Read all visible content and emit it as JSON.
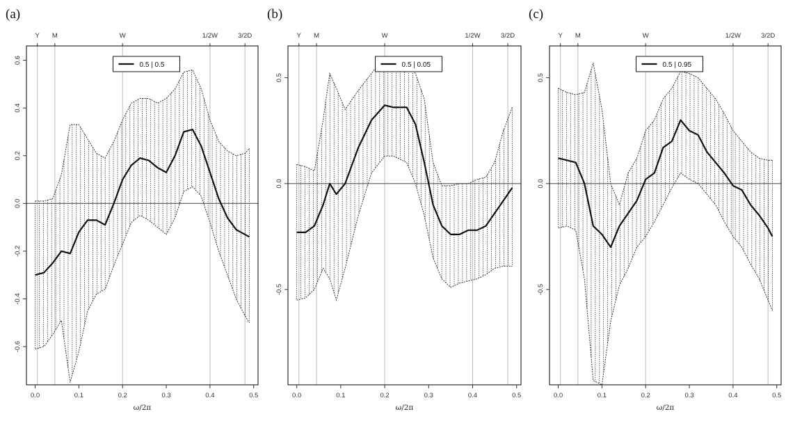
{
  "panels": [
    {
      "label": "(a)",
      "legend": "0.5 | 0.5"
    },
    {
      "label": "(b)",
      "legend": "0.5 | 0.05"
    },
    {
      "label": "(c)",
      "legend": "0.5 | 0.95"
    }
  ],
  "colors": {
    "line": "#111111",
    "band": "#333333",
    "marker": "#bbbbbb",
    "frame": "#000000"
  },
  "chart_data": [
    {
      "type": "line",
      "title": "(a)",
      "xlabel": "ω/2π",
      "ylabel": "",
      "xlim": [
        -0.02,
        0.51
      ],
      "ylim": [
        -0.76,
        0.66
      ],
      "xticks": [
        0.0,
        0.1,
        0.2,
        0.3,
        0.4,
        0.5
      ],
      "yticks": [
        -0.6,
        -0.4,
        -0.2,
        0.0,
        0.2,
        0.4,
        0.6
      ],
      "ytick_labels": [
        "-0.6",
        "-0.4",
        "-0.2",
        "0.0",
        "0.2",
        "0.4",
        "0.6"
      ],
      "top_markers": [
        {
          "label": "Y",
          "x": 0.005
        },
        {
          "label": "M",
          "x": 0.045
        },
        {
          "label": "W",
          "x": 0.2
        },
        {
          "label": "1/2W",
          "x": 0.4
        },
        {
          "label": "3/2D",
          "x": 0.48
        }
      ],
      "hline": 0,
      "legend": {
        "entries": [
          "0.5 | 0.5"
        ],
        "position": "top-center"
      },
      "x": [
        0.0,
        0.02,
        0.04,
        0.06,
        0.08,
        0.1,
        0.12,
        0.14,
        0.16,
        0.18,
        0.2,
        0.22,
        0.24,
        0.26,
        0.28,
        0.3,
        0.32,
        0.34,
        0.36,
        0.38,
        0.4,
        0.42,
        0.44,
        0.46,
        0.48,
        0.49
      ],
      "series": [
        {
          "name": "0.5 | 0.5",
          "values": [
            -0.3,
            -0.29,
            -0.25,
            -0.2,
            -0.21,
            -0.12,
            -0.07,
            -0.07,
            -0.09,
            0.0,
            0.1,
            0.16,
            0.19,
            0.18,
            0.15,
            0.13,
            0.2,
            0.3,
            0.31,
            0.24,
            0.13,
            0.02,
            -0.06,
            -0.11,
            -0.13,
            -0.14
          ]
        }
      ],
      "band_upper": [
        0.01,
        0.01,
        0.02,
        0.12,
        0.33,
        0.33,
        0.27,
        0.21,
        0.19,
        0.26,
        0.35,
        0.42,
        0.44,
        0.44,
        0.42,
        0.44,
        0.48,
        0.55,
        0.56,
        0.48,
        0.35,
        0.26,
        0.22,
        0.2,
        0.21,
        0.23
      ],
      "band_lower": [
        -0.61,
        -0.6,
        -0.55,
        -0.49,
        -0.75,
        -0.62,
        -0.45,
        -0.38,
        -0.36,
        -0.26,
        -0.17,
        -0.08,
        -0.05,
        -0.07,
        -0.1,
        -0.13,
        -0.06,
        0.05,
        0.07,
        0.03,
        -0.08,
        -0.2,
        -0.3,
        -0.4,
        -0.47,
        -0.5
      ]
    },
    {
      "type": "line",
      "title": "(b)",
      "xlabel": "ω/2π",
      "ylabel": "",
      "xlim": [
        -0.02,
        0.51
      ],
      "ylim": [
        -0.95,
        0.65
      ],
      "xticks": [
        0.0,
        0.1,
        0.2,
        0.3,
        0.4,
        0.5
      ],
      "yticks": [
        -0.5,
        0.0,
        0.5
      ],
      "ytick_labels": [
        "-0.5",
        "0.0",
        "0.5"
      ],
      "top_markers": [
        {
          "label": "Y",
          "x": 0.005
        },
        {
          "label": "M",
          "x": 0.045
        },
        {
          "label": "W",
          "x": 0.2
        },
        {
          "label": "1/2W",
          "x": 0.4
        },
        {
          "label": "3/2D",
          "x": 0.48
        }
      ],
      "hline": 0,
      "legend": {
        "entries": [
          "0.5 | 0.05"
        ],
        "position": "top-center"
      },
      "x": [
        0.0,
        0.02,
        0.04,
        0.06,
        0.075,
        0.09,
        0.11,
        0.14,
        0.17,
        0.2,
        0.22,
        0.25,
        0.27,
        0.29,
        0.31,
        0.33,
        0.35,
        0.37,
        0.39,
        0.41,
        0.43,
        0.45,
        0.47,
        0.49
      ],
      "series": [
        {
          "name": "0.5 | 0.05",
          "values": [
            -0.23,
            -0.23,
            -0.2,
            -0.1,
            0.0,
            -0.05,
            0.0,
            0.17,
            0.3,
            0.37,
            0.36,
            0.36,
            0.28,
            0.1,
            -0.1,
            -0.2,
            -0.24,
            -0.24,
            -0.22,
            -0.22,
            -0.2,
            -0.14,
            -0.08,
            -0.02
          ]
        }
      ],
      "band_upper": [
        0.09,
        0.08,
        0.06,
        0.3,
        0.52,
        0.45,
        0.35,
        0.44,
        0.52,
        0.6,
        0.6,
        0.56,
        0.52,
        0.4,
        0.1,
        -0.01,
        -0.01,
        0.0,
        0.0,
        0.02,
        0.03,
        0.1,
        0.25,
        0.36
      ],
      "band_lower": [
        -0.55,
        -0.54,
        -0.5,
        -0.4,
        -0.45,
        -0.55,
        -0.4,
        -0.15,
        0.05,
        0.13,
        0.13,
        0.1,
        0.0,
        -0.15,
        -0.35,
        -0.45,
        -0.49,
        -0.47,
        -0.46,
        -0.45,
        -0.43,
        -0.4,
        -0.39,
        -0.39
      ]
    },
    {
      "type": "line",
      "title": "(c)",
      "xlabel": "ω/2π",
      "ylabel": "",
      "xlim": [
        -0.02,
        0.51
      ],
      "ylim": [
        -0.95,
        0.65
      ],
      "xticks": [
        0.0,
        0.1,
        0.2,
        0.3,
        0.4,
        0.5
      ],
      "yticks": [
        -0.5,
        0.0,
        0.5
      ],
      "ytick_labels": [
        "-0.5",
        "0.0",
        "0.5"
      ],
      "top_markers": [
        {
          "label": "Y",
          "x": 0.005
        },
        {
          "label": "M",
          "x": 0.045
        },
        {
          "label": "W",
          "x": 0.2
        },
        {
          "label": "1/2W",
          "x": 0.4
        },
        {
          "label": "3/2D",
          "x": 0.48
        }
      ],
      "hline": 0,
      "legend": {
        "entries": [
          "0.5 | 0.95"
        ],
        "position": "top-center"
      },
      "x": [
        0.0,
        0.02,
        0.04,
        0.06,
        0.08,
        0.1,
        0.12,
        0.14,
        0.16,
        0.18,
        0.2,
        0.22,
        0.24,
        0.26,
        0.28,
        0.3,
        0.32,
        0.34,
        0.36,
        0.38,
        0.4,
        0.42,
        0.44,
        0.46,
        0.48,
        0.49
      ],
      "series": [
        {
          "name": "0.5 | 0.95",
          "values": [
            0.12,
            0.11,
            0.1,
            0.0,
            -0.2,
            -0.24,
            -0.3,
            -0.2,
            -0.14,
            -0.08,
            0.02,
            0.05,
            0.17,
            0.2,
            0.3,
            0.25,
            0.23,
            0.15,
            0.1,
            0.05,
            -0.01,
            -0.03,
            -0.1,
            -0.15,
            -0.21,
            -0.25
          ]
        }
      ],
      "band_upper": [
        0.45,
        0.43,
        0.42,
        0.43,
        0.57,
        0.35,
        0.0,
        -0.1,
        0.05,
        0.12,
        0.25,
        0.3,
        0.4,
        0.45,
        0.53,
        0.52,
        0.5,
        0.45,
        0.4,
        0.33,
        0.25,
        0.2,
        0.15,
        0.12,
        0.11,
        0.11
      ],
      "band_lower": [
        -0.21,
        -0.2,
        -0.22,
        -0.45,
        -0.93,
        -0.95,
        -0.65,
        -0.48,
        -0.4,
        -0.3,
        -0.25,
        -0.18,
        -0.1,
        -0.02,
        0.05,
        0.02,
        0.0,
        -0.05,
        -0.1,
        -0.18,
        -0.25,
        -0.3,
        -0.38,
        -0.45,
        -0.55,
        -0.6
      ]
    }
  ]
}
